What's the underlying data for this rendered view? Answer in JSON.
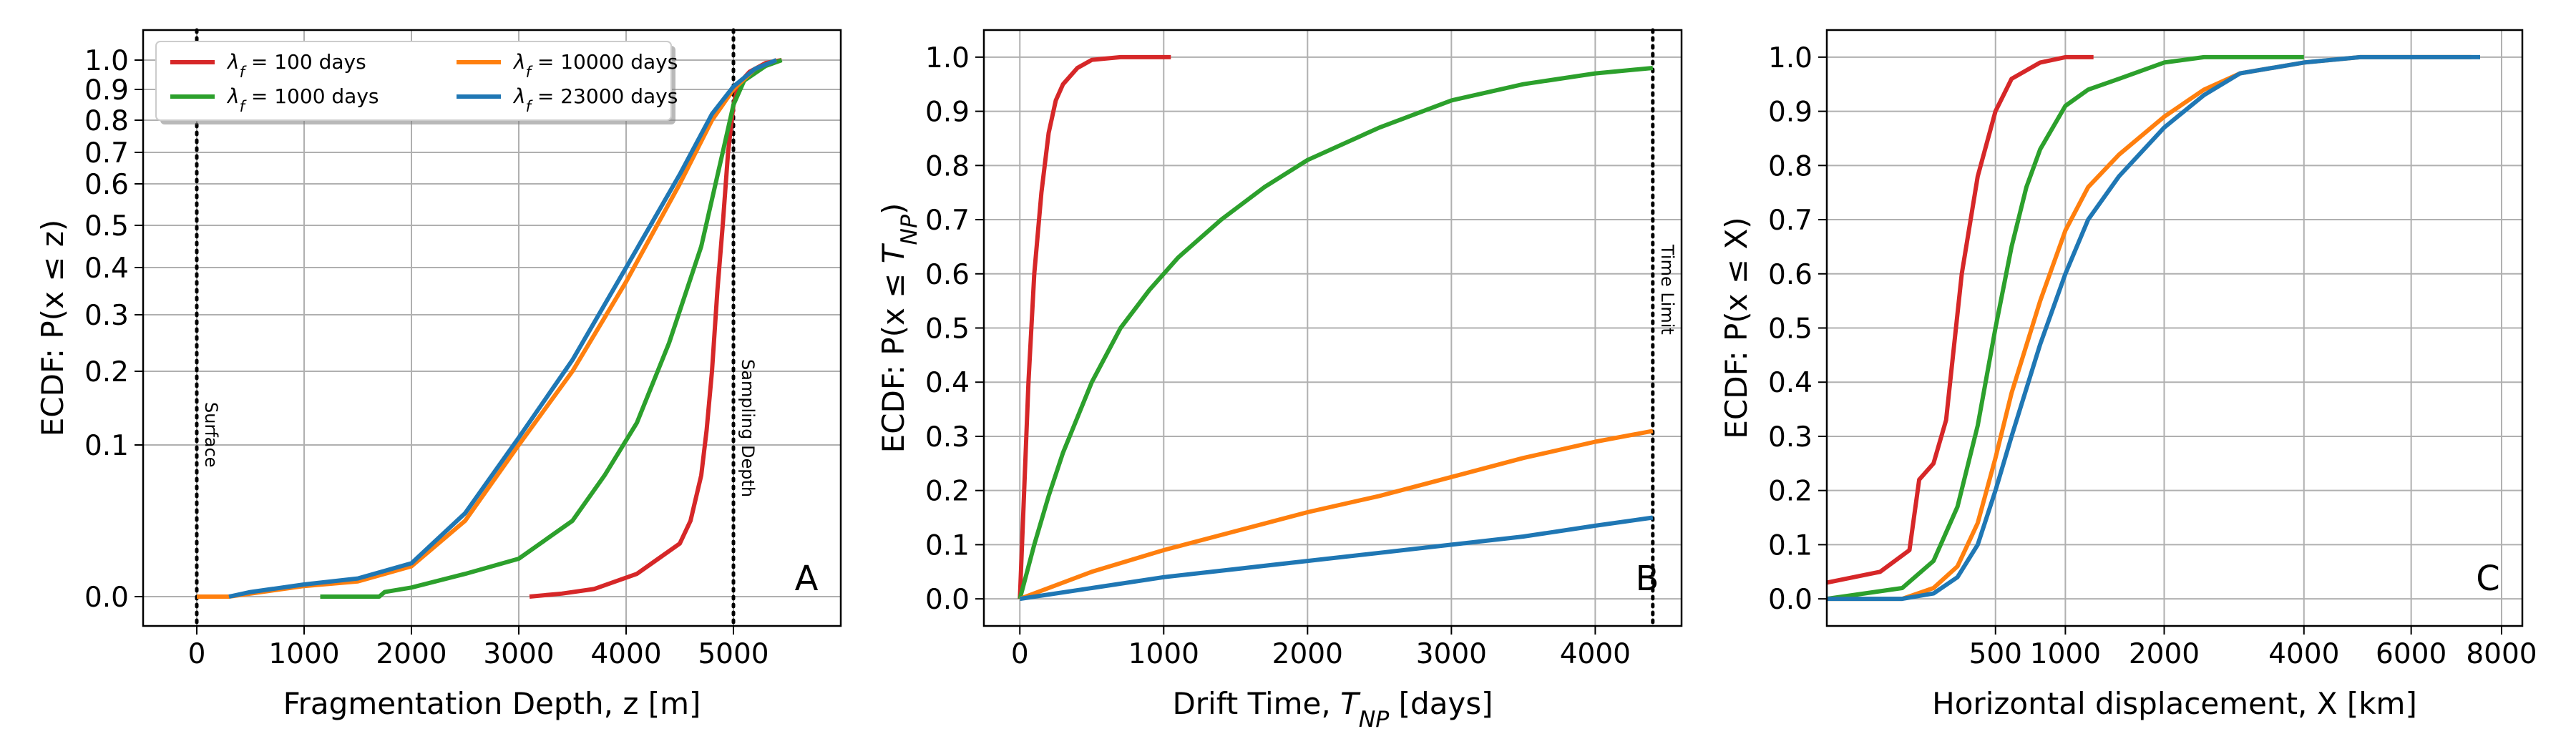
{
  "colors": {
    "red": "#d62728",
    "green": "#2ca02c",
    "orange": "#ff7f0e",
    "blue": "#1f77b4",
    "grid": "#b0b0b0"
  },
  "legend": {
    "items": [
      {
        "label": "λ_f = 100 days",
        "color": "#d62728"
      },
      {
        "label": "λ_f = 1000 days",
        "color": "#2ca02c"
      },
      {
        "label": "λ_f = 10000 days",
        "color": "#ff7f0e"
      },
      {
        "label": "λ_f = 23000 days",
        "color": "#1f77b4"
      }
    ]
  },
  "chart_data": [
    {
      "type": "line",
      "panel_label": "A",
      "xlabel": "Fragmentation Depth, z [m]",
      "ylabel": "ECDF: P(x ≤ z)",
      "xlim": [
        -500,
        6000
      ],
      "xticks": [
        0,
        1000,
        2000,
        3000,
        4000,
        5000
      ],
      "yscale": "logit-like",
      "yticks": [
        0.0,
        0.1,
        0.2,
        0.3,
        0.4,
        0.5,
        0.6,
        0.7,
        0.8,
        0.9,
        1.0
      ],
      "grid": true,
      "legend_position": "top-left",
      "vlines": [
        {
          "x": 0,
          "label": "Surface"
        },
        {
          "x": 5000,
          "label": "Sampling Depth"
        }
      ],
      "series": [
        {
          "name": "λ_f = 100 days",
          "color": "#d62728",
          "x": [
            3100,
            3400,
            3700,
            3900,
            4100,
            4300,
            4500,
            4600,
            4700,
            4750,
            4800,
            4850,
            4900,
            4950,
            5000,
            5050,
            5150,
            5300,
            5450
          ],
          "y": [
            0.0,
            0.002,
            0.005,
            0.01,
            0.015,
            0.025,
            0.035,
            0.05,
            0.08,
            0.12,
            0.2,
            0.35,
            0.5,
            0.7,
            0.85,
            0.92,
            0.96,
            0.99,
            1.0
          ]
        },
        {
          "name": "λ_f = 1000 days",
          "color": "#2ca02c",
          "x": [
            1150,
            1700,
            1750,
            2000,
            2500,
            3000,
            3500,
            3800,
            4100,
            4400,
            4700,
            4900,
            5000,
            5100,
            5300,
            5450
          ],
          "y": [
            0.0,
            0.0,
            0.003,
            0.006,
            0.015,
            0.025,
            0.05,
            0.08,
            0.13,
            0.25,
            0.45,
            0.7,
            0.85,
            0.93,
            0.98,
            1.0
          ]
        },
        {
          "name": "λ_f = 10000 days",
          "color": "#ff7f0e",
          "x": [
            0,
            300,
            1000,
            1500,
            2000,
            2500,
            3000,
            3500,
            4000,
            4500,
            4800,
            5000,
            5200,
            5400
          ],
          "y": [
            0.0,
            0.0,
            0.007,
            0.01,
            0.02,
            0.05,
            0.1,
            0.2,
            0.37,
            0.6,
            0.8,
            0.9,
            0.97,
            1.0
          ]
        },
        {
          "name": "λ_f = 23000 days",
          "color": "#1f77b4",
          "x": [
            300,
            500,
            1000,
            1500,
            2000,
            2500,
            3000,
            3500,
            4000,
            4500,
            4800,
            5000,
            5200,
            5400
          ],
          "y": [
            0.0,
            0.003,
            0.008,
            0.012,
            0.022,
            0.055,
            0.11,
            0.22,
            0.4,
            0.63,
            0.82,
            0.91,
            0.97,
            1.0
          ]
        }
      ]
    },
    {
      "type": "line",
      "panel_label": "B",
      "xlabel": "Drift Time, T_NP [days]",
      "ylabel": "ECDF: P(x ≤ T_NP)",
      "xlim": [
        -250,
        4600
      ],
      "ylim": [
        -0.05,
        1.05
      ],
      "xticks": [
        0,
        1000,
        2000,
        3000,
        4000
      ],
      "yticks": [
        0.0,
        0.1,
        0.2,
        0.3,
        0.4,
        0.5,
        0.6,
        0.7,
        0.8,
        0.9,
        1.0
      ],
      "grid": true,
      "vlines": [
        {
          "x": 4400,
          "label": "Time Limit"
        }
      ],
      "series": [
        {
          "name": "λ_f = 100 days",
          "color": "#d62728",
          "x": [
            0,
            30,
            60,
            100,
            150,
            200,
            250,
            300,
            400,
            500,
            700,
            1050
          ],
          "y": [
            0.0,
            0.2,
            0.4,
            0.6,
            0.75,
            0.86,
            0.92,
            0.95,
            0.98,
            0.995,
            1.0,
            1.0
          ]
        },
        {
          "name": "λ_f = 1000 days",
          "color": "#2ca02c",
          "x": [
            0,
            100,
            200,
            300,
            500,
            700,
            900,
            1100,
            1400,
            1700,
            2000,
            2500,
            3000,
            3500,
            4000,
            4400
          ],
          "y": [
            0.0,
            0.1,
            0.19,
            0.27,
            0.4,
            0.5,
            0.57,
            0.63,
            0.7,
            0.76,
            0.81,
            0.87,
            0.92,
            0.95,
            0.97,
            0.98
          ]
        },
        {
          "name": "λ_f = 10000 days",
          "color": "#ff7f0e",
          "x": [
            0,
            500,
            1000,
            1500,
            2000,
            2500,
            3000,
            3500,
            4000,
            4400
          ],
          "y": [
            0.0,
            0.05,
            0.09,
            0.125,
            0.16,
            0.19,
            0.225,
            0.26,
            0.29,
            0.31
          ]
        },
        {
          "name": "λ_f = 23000 days",
          "color": "#1f77b4",
          "x": [
            0,
            500,
            1000,
            1500,
            2000,
            2500,
            3000,
            3500,
            4000,
            4400
          ],
          "y": [
            0.0,
            0.02,
            0.04,
            0.055,
            0.07,
            0.085,
            0.1,
            0.115,
            0.135,
            0.15
          ]
        }
      ]
    },
    {
      "type": "line",
      "panel_label": "C",
      "xlabel": "Horizontal displacement, X [km]",
      "ylabel": "ECDF: P(x ≤ X)",
      "xscale": "sqrt",
      "xlim": [
        0,
        8500
      ],
      "ylim": [
        -0.05,
        1.05
      ],
      "xticks": [
        500,
        1000,
        2000,
        4000,
        6000,
        8000
      ],
      "yticks": [
        0.0,
        0.1,
        0.2,
        0.3,
        0.4,
        0.5,
        0.6,
        0.7,
        0.8,
        0.9,
        1.0
      ],
      "grid": true,
      "series": [
        {
          "name": "λ_f = 100 days",
          "color": "#d62728",
          "x": [
            0,
            50,
            120,
            150,
            200,
            250,
            280,
            320,
            400,
            500,
            600,
            800,
            1000,
            1250
          ],
          "y": [
            0.03,
            0.05,
            0.09,
            0.22,
            0.25,
            0.33,
            0.45,
            0.6,
            0.78,
            0.9,
            0.96,
            0.99,
            1.0,
            1.0
          ]
        },
        {
          "name": "λ_f = 1000 days",
          "color": "#2ca02c",
          "x": [
            0,
            100,
            200,
            300,
            400,
            500,
            600,
            700,
            800,
            1000,
            1200,
            1500,
            2000,
            2500,
            3000,
            4000
          ],
          "y": [
            0.0,
            0.02,
            0.07,
            0.17,
            0.32,
            0.5,
            0.65,
            0.76,
            0.83,
            0.91,
            0.94,
            0.96,
            0.99,
            1.0,
            1.0,
            1.0
          ]
        },
        {
          "name": "λ_f = 10000 days",
          "color": "#ff7f0e",
          "x": [
            0,
            100,
            200,
            300,
            400,
            500,
            600,
            800,
            1000,
            1200,
            1500,
            2000,
            2500,
            3000,
            4000,
            5000,
            7300
          ],
          "y": [
            0.0,
            0.0,
            0.02,
            0.06,
            0.14,
            0.26,
            0.38,
            0.55,
            0.68,
            0.76,
            0.82,
            0.89,
            0.94,
            0.97,
            0.99,
            1.0,
            1.0
          ]
        },
        {
          "name": "λ_f = 23000 days",
          "color": "#1f77b4",
          "x": [
            0,
            100,
            200,
            300,
            400,
            500,
            600,
            800,
            1000,
            1200,
            1500,
            2000,
            2500,
            3000,
            4000,
            5000,
            7500
          ],
          "y": [
            0.0,
            0.0,
            0.01,
            0.04,
            0.1,
            0.2,
            0.3,
            0.47,
            0.6,
            0.7,
            0.78,
            0.87,
            0.93,
            0.97,
            0.99,
            1.0,
            1.0
          ]
        }
      ]
    }
  ]
}
